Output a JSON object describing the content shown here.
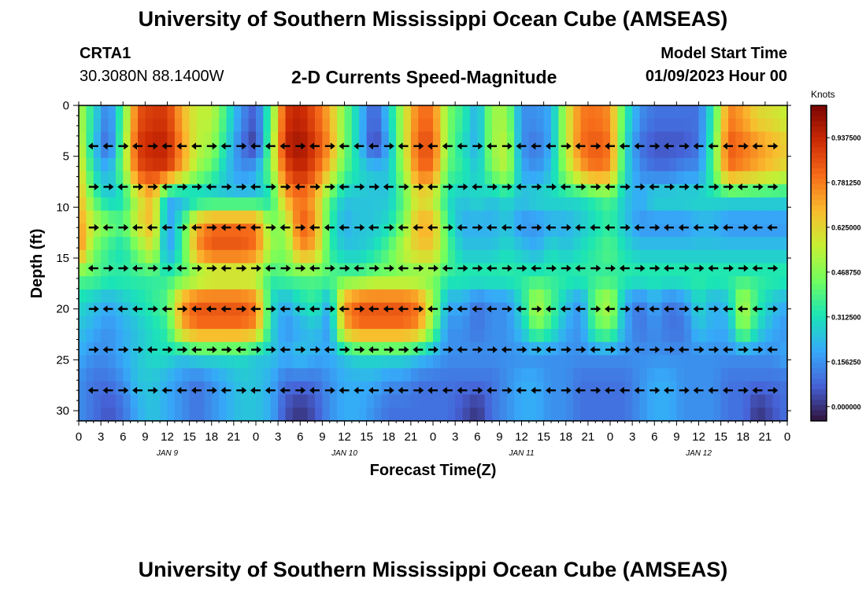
{
  "header": {
    "title": "University of Southern Mississippi Ocean Cube (AMSEAS)",
    "station": "CRTA1",
    "coords": "30.3080N  88.1400W",
    "subtitle": "2-D Currents Speed-Magnitude",
    "model_start_label": "Model Start Time",
    "model_start_value": "01/09/2023 Hour 00"
  },
  "footer": {
    "title": "University of Southern Mississippi Ocean Cube (AMSEAS)"
  },
  "colors": {
    "scale": [
      "#30123b",
      "#4662d7",
      "#36aaf9",
      "#1ae4b6",
      "#72fe5e",
      "#c7ef34",
      "#fabb2e",
      "#f66b19",
      "#cb2a04",
      "#7a0403"
    ]
  },
  "chart_data": {
    "type": "heatmap",
    "title": "2-D Currents Speed-Magnitude",
    "xlabel": "Forecast Time(Z)",
    "ylabel": "Depth (ft)",
    "x_tick_labels": [
      "0",
      "3",
      "6",
      "9",
      "12",
      "15",
      "18",
      "21",
      "0",
      "3",
      "6",
      "9",
      "12",
      "15",
      "18",
      "21",
      "0",
      "3",
      "6",
      "9",
      "12",
      "15",
      "18",
      "21",
      "0",
      "3",
      "6",
      "9",
      "12",
      "15",
      "18",
      "21",
      "0"
    ],
    "day_labels": [
      {
        "label": "JAN 9",
        "hour": 12
      },
      {
        "label": "JAN 10",
        "hour": 36
      },
      {
        "label": "JAN 11",
        "hour": 60
      },
      {
        "label": "JAN 12",
        "hour": 84
      }
    ],
    "xlim_hours": [
      0,
      96
    ],
    "y_ticks": [
      0,
      5,
      10,
      15,
      20,
      25,
      30
    ],
    "ylim_ft": [
      0,
      31
    ],
    "arrow_depths_ft": [
      4,
      8,
      12,
      16,
      20,
      24,
      28
    ],
    "colorbar": {
      "label": "Knots",
      "ticks": [
        "0.000000",
        "0.156250",
        "0.312500",
        "0.468750",
        "0.625000",
        "0.781250",
        "0.937500"
      ],
      "range": [
        -0.05,
        1.05
      ]
    },
    "row_hour_interval": 2,
    "speed_knots": [
      [
        0.55,
        0.3,
        0.1,
        0.4,
        0.85,
        0.9,
        0.9,
        0.7,
        0.55,
        0.55,
        0.35,
        0.15,
        0.05,
        0.4,
        0.9,
        0.95,
        0.85,
        0.7,
        0.45,
        0.25,
        0.05,
        0.25,
        0.55,
        0.8,
        0.8,
        0.45,
        0.35,
        0.2,
        0.5,
        0.5,
        0.15,
        0.15,
        0.2,
        0.55,
        0.78,
        0.8,
        0.75,
        0.35,
        0.15,
        0.1,
        0.1,
        0.1,
        0.1,
        0.35,
        0.78,
        0.72,
        0.62,
        0.6,
        0.55
      ],
      [
        0.6,
        0.25,
        0.05,
        0.45,
        0.9,
        0.95,
        0.95,
        0.75,
        0.55,
        0.5,
        0.3,
        0.1,
        0.0,
        0.45,
        0.95,
        1.0,
        0.9,
        0.75,
        0.45,
        0.25,
        0.0,
        0.2,
        0.55,
        0.85,
        0.85,
        0.45,
        0.3,
        0.2,
        0.5,
        0.55,
        0.15,
        0.1,
        0.2,
        0.55,
        0.8,
        0.85,
        0.8,
        0.3,
        0.1,
        0.05,
        0.05,
        0.05,
        0.1,
        0.4,
        0.85,
        0.8,
        0.75,
        0.7,
        0.65
      ],
      [
        0.65,
        0.3,
        0.2,
        0.45,
        0.85,
        0.9,
        0.9,
        0.7,
        0.5,
        0.4,
        0.25,
        0.15,
        0.2,
        0.45,
        0.85,
        0.95,
        0.85,
        0.65,
        0.4,
        0.3,
        0.25,
        0.25,
        0.5,
        0.8,
        0.8,
        0.4,
        0.35,
        0.25,
        0.45,
        0.55,
        0.2,
        0.15,
        0.25,
        0.5,
        0.7,
        0.8,
        0.75,
        0.3,
        0.15,
        0.1,
        0.1,
        0.15,
        0.15,
        0.4,
        0.8,
        0.75,
        0.7,
        0.65,
        0.6
      ],
      [
        0.7,
        0.4,
        0.25,
        0.3,
        0.55,
        0.7,
        0.2,
        0.2,
        0.25,
        0.25,
        0.25,
        0.25,
        0.25,
        0.3,
        0.7,
        0.8,
        0.7,
        0.4,
        0.25,
        0.25,
        0.25,
        0.25,
        0.4,
        0.6,
        0.55,
        0.3,
        0.25,
        0.3,
        0.25,
        0.3,
        0.25,
        0.3,
        0.3,
        0.3,
        0.3,
        0.35,
        0.4,
        0.25,
        0.2,
        0.3,
        0.3,
        0.3,
        0.3,
        0.3,
        0.3,
        0.3,
        0.3,
        0.3,
        0.3
      ],
      [
        0.75,
        0.55,
        0.45,
        0.4,
        0.6,
        0.7,
        0.15,
        0.35,
        0.7,
        0.8,
        0.8,
        0.8,
        0.8,
        0.45,
        0.5,
        0.85,
        0.75,
        0.35,
        0.2,
        0.25,
        0.25,
        0.3,
        0.45,
        0.7,
        0.7,
        0.35,
        0.2,
        0.2,
        0.2,
        0.25,
        0.15,
        0.15,
        0.2,
        0.2,
        0.25,
        0.3,
        0.35,
        0.25,
        0.15,
        0.15,
        0.15,
        0.15,
        0.2,
        0.2,
        0.15,
        0.15,
        0.15,
        0.15,
        0.15
      ],
      [
        0.8,
        0.45,
        0.35,
        0.3,
        0.45,
        0.6,
        0.15,
        0.35,
        0.75,
        0.85,
        0.85,
        0.85,
        0.8,
        0.5,
        0.45,
        0.75,
        0.7,
        0.35,
        0.25,
        0.25,
        0.3,
        0.4,
        0.55,
        0.65,
        0.65,
        0.4,
        0.25,
        0.25,
        0.25,
        0.3,
        0.25,
        0.2,
        0.3,
        0.25,
        0.3,
        0.35,
        0.4,
        0.3,
        0.25,
        0.25,
        0.25,
        0.25,
        0.25,
        0.25,
        0.25,
        0.25,
        0.25,
        0.25,
        0.25
      ],
      [
        0.4,
        0.4,
        0.35,
        0.35,
        0.35,
        0.35,
        0.35,
        0.4,
        0.45,
        0.5,
        0.5,
        0.5,
        0.5,
        0.35,
        0.4,
        0.4,
        0.4,
        0.4,
        0.4,
        0.4,
        0.45,
        0.45,
        0.45,
        0.45,
        0.45,
        0.35,
        0.35,
        0.35,
        0.35,
        0.35,
        0.35,
        0.35,
        0.35,
        0.35,
        0.35,
        0.35,
        0.35,
        0.35,
        0.35,
        0.35,
        0.35,
        0.35,
        0.35,
        0.35,
        0.35,
        0.35,
        0.35,
        0.35,
        0.35
      ],
      [
        0.3,
        0.25,
        0.2,
        0.25,
        0.3,
        0.35,
        0.4,
        0.75,
        0.85,
        0.85,
        0.85,
        0.85,
        0.8,
        0.3,
        0.2,
        0.3,
        0.35,
        0.2,
        0.75,
        0.85,
        0.85,
        0.85,
        0.85,
        0.8,
        0.5,
        0.2,
        0.2,
        0.1,
        0.15,
        0.15,
        0.3,
        0.55,
        0.4,
        0.25,
        0.15,
        0.45,
        0.55,
        0.2,
        0.1,
        0.2,
        0.1,
        0.15,
        0.3,
        0.2,
        0.25,
        0.55,
        0.35,
        0.25,
        0.2
      ],
      [
        0.25,
        0.2,
        0.15,
        0.2,
        0.25,
        0.3,
        0.35,
        0.7,
        0.8,
        0.8,
        0.8,
        0.8,
        0.75,
        0.3,
        0.15,
        0.2,
        0.25,
        0.15,
        0.7,
        0.8,
        0.8,
        0.8,
        0.8,
        0.75,
        0.45,
        0.15,
        0.15,
        0.1,
        0.15,
        0.15,
        0.25,
        0.45,
        0.35,
        0.2,
        0.15,
        0.4,
        0.45,
        0.2,
        0.1,
        0.15,
        0.1,
        0.1,
        0.25,
        0.2,
        0.2,
        0.5,
        0.3,
        0.2,
        0.15
      ],
      [
        0.2,
        0.15,
        0.15,
        0.2,
        0.25,
        0.3,
        0.3,
        0.25,
        0.3,
        0.3,
        0.3,
        0.3,
        0.25,
        0.25,
        0.2,
        0.25,
        0.2,
        0.2,
        0.25,
        0.3,
        0.3,
        0.3,
        0.3,
        0.25,
        0.2,
        0.15,
        0.15,
        0.15,
        0.15,
        0.15,
        0.15,
        0.15,
        0.15,
        0.15,
        0.15,
        0.15,
        0.15,
        0.15,
        0.15,
        0.15,
        0.15,
        0.15,
        0.15,
        0.15,
        0.15,
        0.15,
        0.15,
        0.15,
        0.2
      ],
      [
        0.15,
        0.1,
        0.1,
        0.15,
        0.25,
        0.25,
        0.2,
        0.15,
        0.1,
        0.15,
        0.2,
        0.25,
        0.25,
        0.2,
        0.1,
        0.1,
        0.1,
        0.15,
        0.2,
        0.2,
        0.2,
        0.15,
        0.15,
        0.1,
        0.1,
        0.1,
        0.1,
        0.1,
        0.1,
        0.15,
        0.2,
        0.2,
        0.15,
        0.15,
        0.1,
        0.1,
        0.1,
        0.1,
        0.15,
        0.2,
        0.2,
        0.15,
        0.15,
        0.15,
        0.1,
        0.1,
        0.1,
        0.1,
        0.1
      ],
      [
        0.15,
        0.1,
        0.05,
        0.1,
        0.2,
        0.25,
        0.2,
        0.15,
        0.1,
        0.15,
        0.2,
        0.25,
        0.25,
        0.2,
        0.05,
        0.0,
        0.05,
        0.15,
        0.2,
        0.2,
        0.15,
        0.1,
        0.1,
        0.1,
        0.1,
        0.1,
        0.05,
        0.0,
        0.1,
        0.15,
        0.2,
        0.2,
        0.15,
        0.15,
        0.1,
        0.1,
        0.1,
        0.1,
        0.15,
        0.2,
        0.2,
        0.15,
        0.15,
        0.15,
        0.1,
        0.1,
        0.0,
        0.05,
        0.1
      ]
    ]
  }
}
